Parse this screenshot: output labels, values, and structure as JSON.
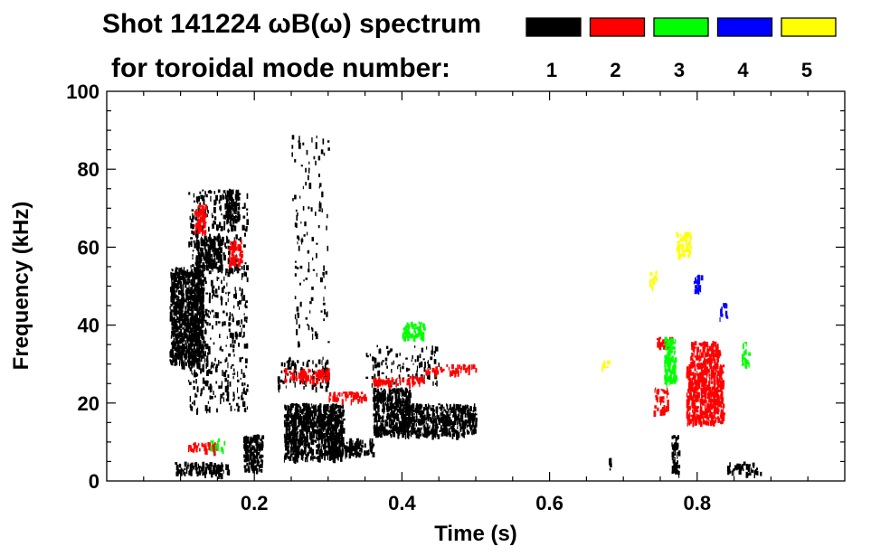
{
  "chart_data": {
    "type": "heatmap",
    "title_line1": "Shot 141224 ωB(ω) spectrum",
    "title_line2": "for toroidal mode number:",
    "xlabel": "Time (s)",
    "ylabel": "Frequency (kHz)",
    "xlim": [
      0.0,
      1.0
    ],
    "ylim": [
      0,
      100
    ],
    "x_ticks": [
      0.2,
      0.4,
      0.6,
      0.8
    ],
    "x_tick_labels": [
      "0.2",
      "0.4",
      "0.6",
      "0.8"
    ],
    "y_ticks": [
      0,
      20,
      40,
      60,
      80,
      100
    ],
    "y_tick_labels": [
      "0",
      "20",
      "40",
      "60",
      "80",
      "100"
    ],
    "legend": [
      {
        "label": "1",
        "color": "#000000"
      },
      {
        "label": "2",
        "color": "#ff0000"
      },
      {
        "label": "3",
        "color": "#00ff00"
      },
      {
        "label": "4",
        "color": "#0000ff"
      },
      {
        "label": "5",
        "color": "#ffff00"
      }
    ],
    "modes": [
      {
        "n": 1,
        "color": "#000000",
        "regions": [
          {
            "t": [
              0.085,
              0.13
            ],
            "f": [
              30,
              55
            ],
            "density": 0.9
          },
          {
            "t": [
              0.12,
              0.155
            ],
            "f": [
              55,
              63
            ],
            "density": 0.8
          },
          {
            "t": [
              0.16,
              0.178
            ],
            "f": [
              67,
              75
            ],
            "density": 0.7
          },
          {
            "t": [
              0.11,
              0.19
            ],
            "f": [
              18,
              75
            ],
            "density": 0.15
          },
          {
            "t": [
              0.09,
              0.165
            ],
            "f": [
              2,
              5
            ],
            "density": 0.6
          },
          {
            "t": [
              0.185,
              0.21
            ],
            "f": [
              3,
              12
            ],
            "density": 0.8
          },
          {
            "t": [
              0.24,
              0.32
            ],
            "f": [
              6,
              20
            ],
            "density": 0.85
          },
          {
            "t": [
              0.3,
              0.36
            ],
            "f": [
              7,
              11
            ],
            "density": 0.7
          },
          {
            "t": [
              0.36,
              0.41
            ],
            "f": [
              12,
              24
            ],
            "density": 0.8
          },
          {
            "t": [
              0.4,
              0.5
            ],
            "f": [
              12,
              20
            ],
            "density": 0.7
          },
          {
            "t": [
              0.35,
              0.45
            ],
            "f": [
              25,
              35
            ],
            "density": 0.12
          },
          {
            "t": [
              0.23,
              0.3
            ],
            "f": [
              24,
              32
            ],
            "density": 0.2
          },
          {
            "t": [
              0.25,
              0.3
            ],
            "f": [
              35,
              90
            ],
            "density": 0.05
          },
          {
            "t": [
              0.765,
              0.775
            ],
            "f": [
              2,
              12
            ],
            "density": 0.7
          },
          {
            "t": [
              0.68,
              0.685
            ],
            "f": [
              3,
              6
            ],
            "density": 0.5
          },
          {
            "t": [
              0.84,
              0.885
            ],
            "f": [
              2,
              5
            ],
            "density": 0.4
          }
        ]
      },
      {
        "n": 2,
        "color": "#ff0000",
        "regions": [
          {
            "t": [
              0.118,
              0.133
            ],
            "f": [
              64,
              71
            ],
            "density": 0.7
          },
          {
            "t": [
              0.165,
              0.182
            ],
            "f": [
              56,
              62
            ],
            "density": 0.7
          },
          {
            "t": [
              0.11,
              0.15
            ],
            "f": [
              8,
              10
            ],
            "density": 0.6
          },
          {
            "t": [
              0.24,
              0.3
            ],
            "f": [
              26,
              29
            ],
            "density": 0.6
          },
          {
            "t": [
              0.3,
              0.35
            ],
            "f": [
              21,
              23
            ],
            "density": 0.6
          },
          {
            "t": [
              0.36,
              0.43
            ],
            "f": [
              25,
              27
            ],
            "density": 0.6
          },
          {
            "t": [
              0.43,
              0.5
            ],
            "f": [
              28,
              30
            ],
            "density": 0.4
          },
          {
            "t": [
              0.745,
              0.765
            ],
            "f": [
              34,
              37
            ],
            "density": 0.8
          },
          {
            "t": [
              0.79,
              0.83
            ],
            "f": [
              30,
              36
            ],
            "density": 0.8
          },
          {
            "t": [
              0.785,
              0.835
            ],
            "f": [
              15,
              30
            ],
            "density": 0.85
          },
          {
            "t": [
              0.74,
              0.76
            ],
            "f": [
              18,
              24
            ],
            "density": 0.4
          }
        ]
      },
      {
        "n": 3,
        "color": "#00ff00",
        "regions": [
          {
            "t": [
              0.4,
              0.43
            ],
            "f": [
              37,
              41
            ],
            "density": 0.6
          },
          {
            "t": [
              0.755,
              0.77
            ],
            "f": [
              25,
              37
            ],
            "density": 0.8
          },
          {
            "t": [
              0.86,
              0.87
            ],
            "f": [
              30,
              36
            ],
            "density": 0.4
          },
          {
            "t": [
              0.14,
              0.16
            ],
            "f": [
              8,
              11
            ],
            "density": 0.3
          }
        ]
      },
      {
        "n": 4,
        "color": "#0000ff",
        "regions": [
          {
            "t": [
              0.795,
              0.805
            ],
            "f": [
              49,
              53
            ],
            "density": 0.7
          },
          {
            "t": [
              0.83,
              0.84
            ],
            "f": [
              42,
              46
            ],
            "density": 0.5
          }
        ]
      },
      {
        "n": 5,
        "color": "#ffff00",
        "regions": [
          {
            "t": [
              0.77,
              0.79
            ],
            "f": [
              58,
              64
            ],
            "density": 0.5
          },
          {
            "t": [
              0.67,
              0.68
            ],
            "f": [
              29,
              31
            ],
            "density": 0.5
          },
          {
            "t": [
              0.735,
              0.745
            ],
            "f": [
              50,
              54
            ],
            "density": 0.4
          }
        ]
      }
    ]
  }
}
